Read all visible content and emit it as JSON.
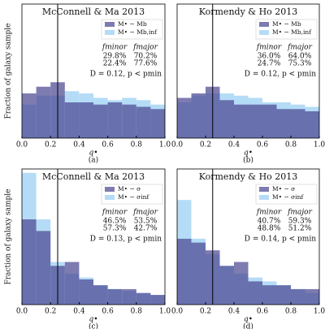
{
  "chart_data": [
    {
      "type": "histogram",
      "title": "McConnell & Ma 2013",
      "xlabel": "q•",
      "ylabel": "Fraction of galaxy sample",
      "panel_label": "(a)",
      "bins": [
        0,
        0.1,
        0.2,
        0.3,
        0.4,
        0.5,
        0.6,
        0.7,
        0.8,
        0.9,
        1.0
      ],
      "series": [
        {
          "name": "M• − Mb",
          "color": "#4b4892",
          "values": [
            0.1,
            0.115,
            0.125,
            0.08,
            0.08,
            0.075,
            0.08,
            0.075,
            0.07,
            0.065
          ]
        },
        {
          "name": "M• − Mb,inf",
          "color": "#b5dcf6",
          "values": [
            0.075,
            0.095,
            0.095,
            0.105,
            0.1,
            0.09,
            0.085,
            0.09,
            0.085,
            0.075
          ]
        }
      ],
      "xlim": [
        0,
        1
      ],
      "ylim": [
        0,
        0.3
      ],
      "xticks": [
        {
          "value": 0,
          "label": "0.0"
        },
        0.2,
        0.4,
        0.6,
        0.8,
        {
          "value": 1,
          "label": "1.0"
        }
      ],
      "vline": 0.25,
      "table_header": [
        "fminor",
        "fmajor"
      ],
      "table_rows": [
        [
          "29.8%",
          "70.2%"
        ],
        [
          "22.4%",
          "77.6%"
        ]
      ],
      "stat": "D = 0.12, p < pmin"
    },
    {
      "type": "histogram",
      "title": "Kormendy & Ho 2013",
      "xlabel": "q•",
      "panel_label": "(b)",
      "bins": [
        0,
        0.1,
        0.2,
        0.3,
        0.4,
        0.5,
        0.6,
        0.7,
        0.8,
        0.9,
        1.0
      ],
      "series": [
        {
          "name": "M• − Mb",
          "color": "#4b4892",
          "values": [
            0.09,
            0.1,
            0.115,
            0.085,
            0.075,
            0.075,
            0.075,
            0.065,
            0.065,
            0.06
          ]
        },
        {
          "name": "M• − Mb,inf",
          "color": "#b5dcf6",
          "values": [
            0.08,
            0.095,
            0.1,
            0.1,
            0.095,
            0.09,
            0.08,
            0.08,
            0.075,
            0.07
          ]
        }
      ],
      "xlim": [
        0,
        1
      ],
      "ylim": [
        0,
        0.3
      ],
      "xticks": [
        {
          "value": 0,
          "label": "0.0"
        },
        0.2,
        0.4,
        0.6,
        0.8,
        {
          "value": 1,
          "label": "1.0"
        }
      ],
      "vline": 0.25,
      "table_header": [
        "fminor",
        "fmajor"
      ],
      "table_rows": [
        [
          "36.0%",
          "64.0%"
        ],
        [
          "24.7%",
          "75.3%"
        ]
      ],
      "stat": "D = 0.12, p < pmin"
    },
    {
      "type": "histogram",
      "title": "McConnell & Ma 2013",
      "xlabel": "q•",
      "ylabel": "Fraction of galaxy sample",
      "panel_label": "(c)",
      "bins": [
        0,
        0.1,
        0.2,
        0.3,
        0.4,
        0.5,
        0.6,
        0.7,
        0.8,
        0.9,
        1.0
      ],
      "series": [
        {
          "name": "M• − σ",
          "color": "#4b4892",
          "values": [
            0.22,
            0.19,
            0.1,
            0.11,
            0.065,
            0.05,
            0.04,
            0.04,
            0.03,
            0.025
          ]
        },
        {
          "name": "M• − σinf",
          "color": "#b5dcf6",
          "values": [
            0.34,
            0.22,
            0.11,
            0.08,
            0.07,
            0.05,
            0.04,
            0.035,
            0.03,
            0.025
          ]
        }
      ],
      "xlim": [
        0,
        1
      ],
      "ylim": [
        0,
        0.35
      ],
      "xticks": [
        {
          "value": 0,
          "label": "0.0"
        },
        0.2,
        0.4,
        0.6,
        0.8,
        {
          "value": 1,
          "label": "1.0"
        }
      ],
      "vline": 0.25,
      "table_header": [
        "fminor",
        "fmajor"
      ],
      "table_rows": [
        [
          "46.5%",
          "53.5%"
        ],
        [
          "57.3%",
          "42.7%"
        ]
      ],
      "stat": "D = 0.13, p < pmin"
    },
    {
      "type": "histogram",
      "title": "Kormendy & Ho 2013",
      "xlabel": "q•",
      "panel_label": "(d)",
      "bins": [
        0,
        0.1,
        0.2,
        0.3,
        0.4,
        0.5,
        0.6,
        0.7,
        0.8,
        0.9,
        1.0
      ],
      "series": [
        {
          "name": "M• − σ",
          "color": "#4b4892",
          "values": [
            0.17,
            0.16,
            0.14,
            0.1,
            0.11,
            0.06,
            0.05,
            0.05,
            0.04,
            0.04
          ]
        },
        {
          "name": "M• − σinf",
          "color": "#b5dcf6",
          "values": [
            0.27,
            0.17,
            0.13,
            0.1,
            0.08,
            0.07,
            0.06,
            0.05,
            0.04,
            0.03
          ]
        }
      ],
      "xlim": [
        0,
        1
      ],
      "ylim": [
        0,
        0.35
      ],
      "xticks": [
        {
          "value": 0,
          "label": "0.0"
        },
        0.2,
        0.4,
        0.6,
        0.8,
        {
          "value": 1,
          "label": "1.0"
        }
      ],
      "vline": 0.25,
      "table_header": [
        "fminor",
        "fmajor"
      ],
      "table_rows": [
        [
          "40.7%",
          "59.3%"
        ],
        [
          "48.8%",
          "51.2%"
        ]
      ],
      "stat": "D = 0.14, p < pmin"
    }
  ]
}
